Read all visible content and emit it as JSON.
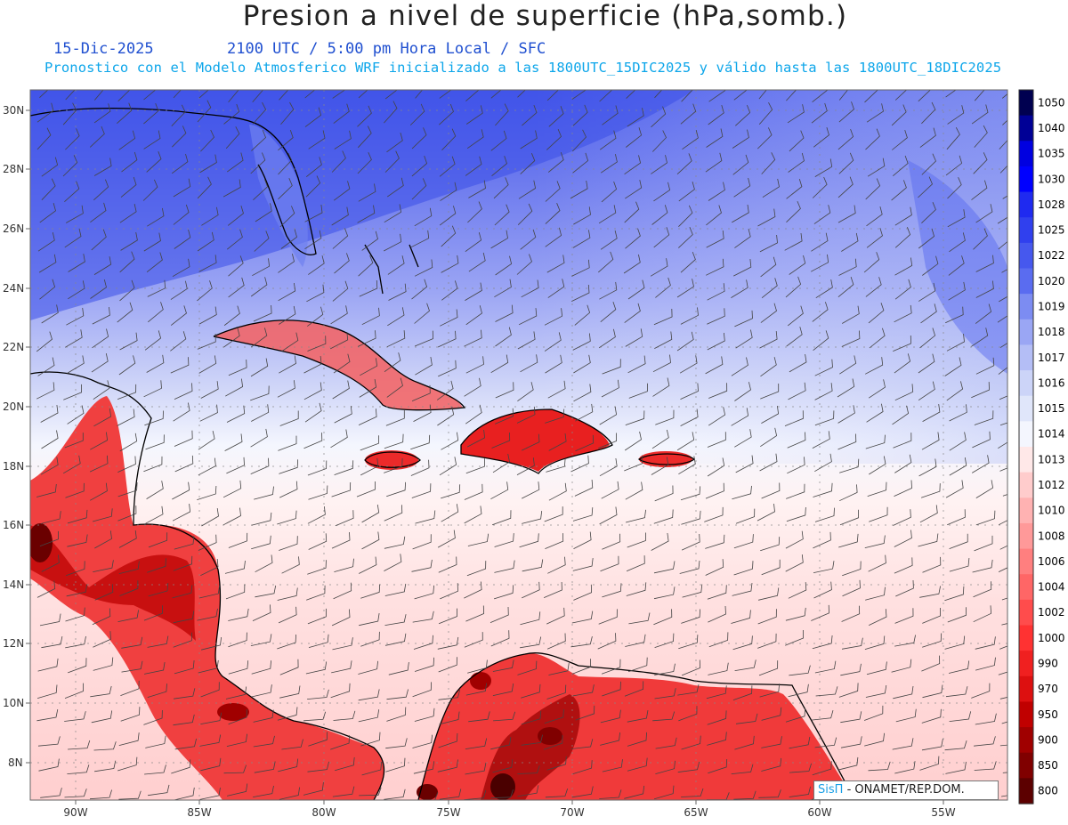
{
  "header": {
    "title": "Presion a nivel de superficie (hPa,somb.)",
    "date": "15-Dic-2025",
    "valid_time": "2100 UTC / 5:00 pm Hora Local / SFC",
    "description": "Pronostico con el Modelo Atmosferico WRF inicializado a las 1800UTC_15DIC2025 y válido hasta las  1800UTC_18DIC2025"
  },
  "map": {
    "lat_labels": [
      "30N",
      "28N",
      "26N",
      "24N",
      "22N",
      "20N",
      "18N",
      "16N",
      "14N",
      "12N",
      "10N",
      "8N"
    ],
    "lon_labels": [
      "90W",
      "85W",
      "80W",
      "75W",
      "70W",
      "65W",
      "60W",
      "55W"
    ],
    "lat_range": [
      6.5,
      30.7
    ],
    "lon_range": [
      -91.8,
      -51.9
    ],
    "grid": true,
    "field": "sea level pressure (hPa), shaded, with wind barbs"
  },
  "colorbar": {
    "labels": [
      "1050",
      "1040",
      "1035",
      "1030",
      "1028",
      "1025",
      "1022",
      "1020",
      "1019",
      "1018",
      "1017",
      "1016",
      "1015",
      "1014",
      "1013",
      "1012",
      "1010",
      "1008",
      "1006",
      "1004",
      "1002",
      "1000",
      "990",
      "970",
      "950",
      "900",
      "850",
      "800"
    ],
    "colors": [
      "#000050",
      "#000096",
      "#0000e0",
      "#0000ff",
      "#1f2af0",
      "#3040ee",
      "#4658ee",
      "#5a6cf0",
      "#7c8cf2",
      "#9aa6f4",
      "#b4bef6",
      "#ccd4f8",
      "#e0e6fa",
      "#f4f6fe",
      "#ffe8e8",
      "#ffcccc",
      "#ffb2b2",
      "#ff9999",
      "#ff7f7f",
      "#ff6666",
      "#ff4c4c",
      "#ff3232",
      "#f02020",
      "#dd1010",
      "#c00000",
      "#a00000",
      "#800000",
      "#5c0000"
    ]
  },
  "credit": {
    "brand": "SisΠ",
    "text": "- ONAMET/REP.DOM."
  }
}
